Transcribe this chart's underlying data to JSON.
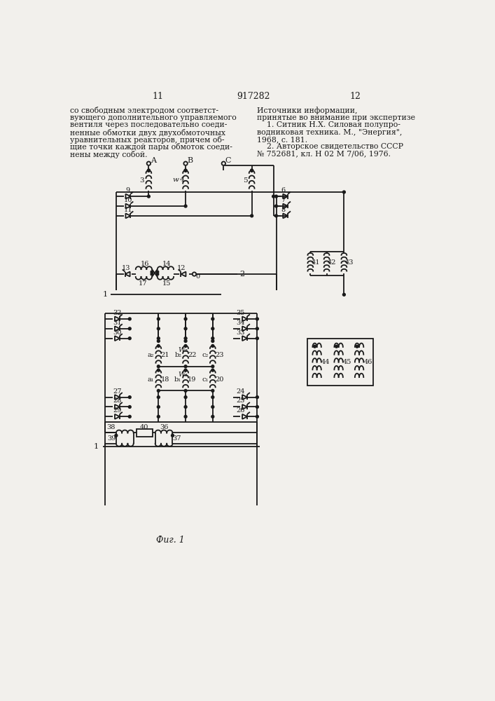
{
  "bg_color": "#f2f0ec",
  "line_color": "#1a1a1a",
  "text_color": "#1a1a1a",
  "page_left": "11",
  "page_center": "917282",
  "page_right": "12",
  "left_text": [
    "со свободным электродом соответст-",
    "вующего дополнительного управляемого",
    "вентиля через последовательно соеди-",
    "ненные обмотки двух двухобмоточных",
    "уравнительных реакторов, причем об-",
    "щие точки каждой пары обмоток соеди-",
    "нены между собой."
  ],
  "right_text": [
    "Источники информации,",
    "принятые во внимание при экспертизе",
    "    1. Ситник Н.Х. Силовая полупро-",
    "водниковая техника. М., \"Энергия\",",
    "1968, с. 181.",
    "    2. Авторское свидетельство СССР",
    "№ 752681, кл. Н 02 М 7/06, 1976."
  ],
  "fig_label": "Фиг. 1"
}
